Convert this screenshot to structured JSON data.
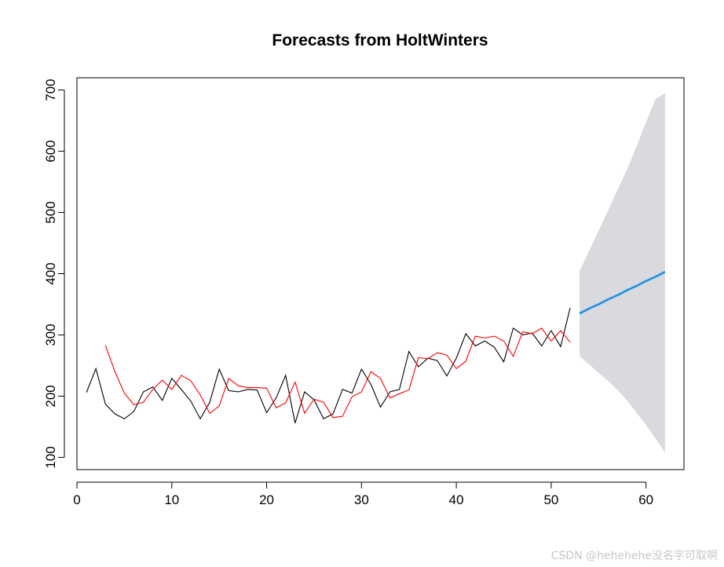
{
  "chart_data": {
    "type": "line",
    "title": "Forecasts from HoltWinters",
    "xlabel": "",
    "ylabel": "",
    "xlim": [
      0,
      64
    ],
    "ylim": [
      80,
      720
    ],
    "x_ticks": [
      0,
      10,
      20,
      30,
      40,
      50,
      60
    ],
    "y_ticks": [
      100,
      200,
      300,
      400,
      500,
      600,
      700
    ],
    "grid": false,
    "series": [
      {
        "color": "#000000",
        "x": [
          1,
          2,
          3,
          4,
          5,
          6,
          7,
          8,
          9,
          10,
          11,
          12,
          13,
          14,
          15,
          16,
          17,
          18,
          19,
          20,
          21,
          22,
          23,
          24,
          25,
          26,
          27,
          28,
          29,
          30,
          31,
          32,
          33,
          34,
          35,
          36,
          37,
          38,
          39,
          40,
          41,
          42,
          43,
          44,
          45,
          46,
          47,
          48,
          49,
          50,
          51,
          52
        ],
        "y": [
          206,
          245,
          187,
          171,
          163,
          175,
          207,
          215,
          193,
          229,
          211,
          192,
          163,
          190,
          244,
          209,
          207,
          211,
          210,
          173,
          197,
          234,
          156,
          207,
          194,
          163,
          171,
          211,
          205,
          244,
          219,
          182,
          207,
          211,
          273,
          248,
          262,
          258,
          233,
          262,
          302,
          282,
          290,
          280,
          256,
          311,
          300,
          303,
          282,
          307,
          281,
          344
        ]
      },
      {
        "color": "#ff0000",
        "x": [
          3,
          4,
          5,
          6,
          7,
          8,
          9,
          10,
          11,
          12,
          13,
          14,
          15,
          16,
          17,
          18,
          19,
          20,
          21,
          22,
          23,
          24,
          25,
          26,
          27,
          28,
          29,
          30,
          31,
          32,
          33,
          34,
          35,
          36,
          37,
          38,
          39,
          40,
          41,
          42,
          43,
          44,
          45,
          46,
          47,
          48,
          49,
          50,
          51,
          52
        ],
        "y": [
          283,
          240,
          205,
          186,
          190,
          211,
          226,
          211,
          234,
          225,
          202,
          172,
          184,
          229,
          217,
          214,
          214,
          213,
          181,
          189,
          223,
          172,
          195,
          190,
          165,
          167,
          199,
          207,
          240,
          229,
          197,
          204,
          210,
          263,
          261,
          271,
          267,
          245,
          257,
          298,
          295,
          298,
          290,
          265,
          305,
          302,
          311,
          290,
          307,
          288
        ]
      }
    ],
    "forecast": {
      "color": "#1e90e6",
      "interval_color": "#d9d9de",
      "x": [
        53,
        54,
        55,
        56,
        57,
        58,
        59,
        60,
        61,
        62
      ],
      "mean": [
        335,
        343,
        350,
        358,
        365,
        373,
        380,
        388,
        395,
        403
      ],
      "lower": [
        265,
        252,
        238,
        225,
        210,
        193,
        173,
        153,
        131,
        108
      ],
      "upper": [
        405,
        437,
        470,
        503,
        537,
        570,
        608,
        647,
        685,
        695
      ]
    }
  },
  "watermark": {
    "text": "CSDN @hehehehe没名字可取啊"
  }
}
